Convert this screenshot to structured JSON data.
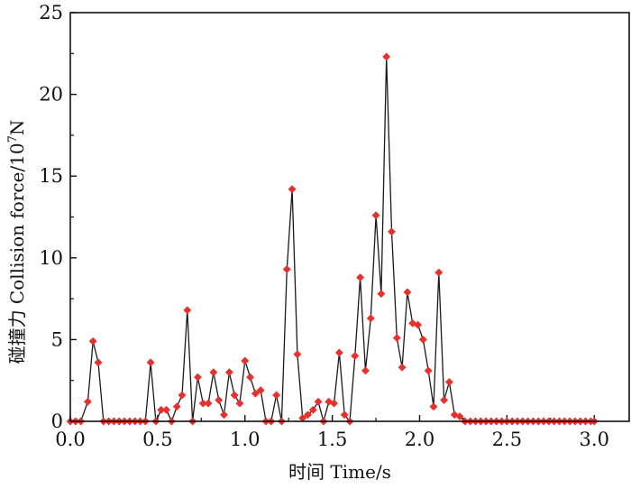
{
  "chart_data": {
    "type": "line",
    "xlabel": "时间 Time/s",
    "ylabel_main": "碰撞力 Collision force/10",
    "ylabel_exp": "7",
    "ylabel_unit": "N",
    "xlim": [
      0.0,
      3.2
    ],
    "ylim": [
      0,
      25
    ],
    "xticks": [
      "0.0",
      "0.5",
      "1.0",
      "1.5",
      "2.0",
      "2.5",
      "3.0"
    ],
    "yticks": [
      "0",
      "5",
      "10",
      "15",
      "20",
      "25"
    ],
    "grid": false,
    "line_color": "#1a1a1a",
    "marker_color": "#e8302c",
    "points": [
      [
        0.0,
        0.0
      ],
      [
        0.03,
        0.0
      ],
      [
        0.06,
        0.0
      ],
      [
        0.1,
        1.2
      ],
      [
        0.13,
        4.9
      ],
      [
        0.16,
        3.6
      ],
      [
        0.19,
        0.0
      ],
      [
        0.22,
        0.0
      ],
      [
        0.25,
        0.0
      ],
      [
        0.28,
        0.0
      ],
      [
        0.31,
        0.0
      ],
      [
        0.34,
        0.0
      ],
      [
        0.37,
        0.0
      ],
      [
        0.4,
        0.0
      ],
      [
        0.43,
        0.0
      ],
      [
        0.46,
        3.6
      ],
      [
        0.49,
        0.0
      ],
      [
        0.52,
        0.7
      ],
      [
        0.55,
        0.7
      ],
      [
        0.58,
        0.0
      ],
      [
        0.61,
        0.9
      ],
      [
        0.64,
        1.6
      ],
      [
        0.67,
        6.8
      ],
      [
        0.7,
        0.0
      ],
      [
        0.73,
        2.7
      ],
      [
        0.76,
        1.1
      ],
      [
        0.79,
        1.1
      ],
      [
        0.82,
        3.0
      ],
      [
        0.85,
        1.3
      ],
      [
        0.88,
        0.4
      ],
      [
        0.91,
        3.0
      ],
      [
        0.94,
        1.6
      ],
      [
        0.97,
        1.1
      ],
      [
        1.0,
        3.7
      ],
      [
        1.03,
        2.7
      ],
      [
        1.06,
        1.7
      ],
      [
        1.09,
        1.9
      ],
      [
        1.12,
        0.0
      ],
      [
        1.15,
        0.0
      ],
      [
        1.18,
        1.6
      ],
      [
        1.21,
        0.0
      ],
      [
        1.24,
        9.3
      ],
      [
        1.27,
        14.2
      ],
      [
        1.3,
        4.1
      ],
      [
        1.33,
        0.2
      ],
      [
        1.36,
        0.4
      ],
      [
        1.39,
        0.7
      ],
      [
        1.42,
        1.2
      ],
      [
        1.45,
        0.0
      ],
      [
        1.48,
        1.2
      ],
      [
        1.51,
        1.1
      ],
      [
        1.54,
        4.2
      ],
      [
        1.57,
        0.4
      ],
      [
        1.6,
        0.0
      ],
      [
        1.63,
        4.0
      ],
      [
        1.66,
        8.8
      ],
      [
        1.69,
        3.1
      ],
      [
        1.72,
        6.3
      ],
      [
        1.75,
        12.6
      ],
      [
        1.78,
        7.8
      ],
      [
        1.81,
        22.3
      ],
      [
        1.84,
        11.6
      ],
      [
        1.87,
        5.1
      ],
      [
        1.9,
        3.3
      ],
      [
        1.93,
        7.9
      ],
      [
        1.96,
        6.0
      ],
      [
        1.99,
        5.9
      ],
      [
        2.02,
        5.0
      ],
      [
        2.05,
        3.1
      ],
      [
        2.08,
        0.9
      ],
      [
        2.11,
        9.1
      ],
      [
        2.14,
        1.3
      ],
      [
        2.17,
        2.4
      ],
      [
        2.2,
        0.4
      ],
      [
        2.23,
        0.3
      ],
      [
        2.26,
        0.0
      ],
      [
        2.29,
        0.0
      ],
      [
        2.32,
        0.0
      ],
      [
        2.35,
        0.0
      ],
      [
        2.38,
        0.0
      ],
      [
        2.41,
        0.0
      ],
      [
        2.44,
        0.0
      ],
      [
        2.47,
        0.0
      ],
      [
        2.5,
        0.0
      ],
      [
        2.53,
        0.0
      ],
      [
        2.56,
        0.0
      ],
      [
        2.59,
        0.0
      ],
      [
        2.62,
        0.0
      ],
      [
        2.65,
        0.0
      ],
      [
        2.68,
        0.0
      ],
      [
        2.71,
        0.0
      ],
      [
        2.74,
        0.0
      ],
      [
        2.77,
        0.0
      ],
      [
        2.8,
        0.0
      ],
      [
        2.83,
        0.0
      ],
      [
        2.86,
        0.0
      ],
      [
        2.89,
        0.0
      ],
      [
        2.92,
        0.0
      ],
      [
        2.95,
        0.0
      ],
      [
        2.98,
        0.0
      ],
      [
        3.0,
        0.0
      ]
    ]
  }
}
